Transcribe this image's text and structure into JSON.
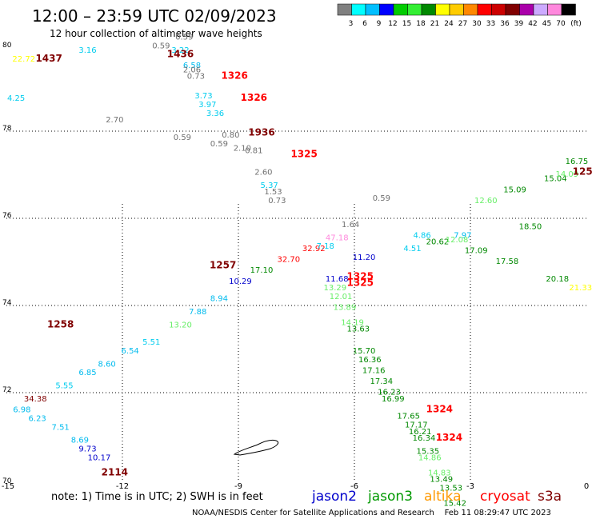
{
  "title": "12:00 – 23:59 UTC 02/09/2023",
  "subtitle": "12 hour collection of altimeter wave heights",
  "colorbar": {
    "colors": [
      "#808080",
      "#00ffff",
      "#00bfff",
      "#0000ff",
      "#00cc00",
      "#33ee33",
      "#008800",
      "#ffff00",
      "#ffcc00",
      "#ff8800",
      "#ff0000",
      "#cc0000",
      "#800000",
      "#aa00aa",
      "#ccaaff",
      "#ff88dd",
      "#000000"
    ],
    "labels": [
      "3",
      "6",
      "9",
      "12",
      "15",
      "18",
      "21",
      "24",
      "27",
      "30",
      "33",
      "36",
      "39",
      "42",
      "45",
      "70",
      "(ft)"
    ]
  },
  "note": "note: 1) Time is in UTC; 2) SWH is in feet",
  "missions": [
    {
      "name": "jason2",
      "color": "#0000cc"
    },
    {
      "name": "jason3",
      "color": "#009900"
    },
    {
      "name": "altika",
      "color": "#ff9900"
    },
    {
      "name": "cryosat",
      "color": "#ff0000"
    },
    {
      "name": "s3a",
      "color": "#800000"
    }
  ],
  "footer": "NOAA/NESDIS Center for Satellite Applications and Research    Feb 11 08:29:47 UTC 2023",
  "chart_data": {
    "type": "scatter",
    "xlim": [
      -15,
      0
    ],
    "ylim": [
      70,
      80
    ],
    "xticks": [
      "-15",
      "-12",
      "-9",
      "-6",
      "-3",
      "0"
    ],
    "yticks": [
      "80",
      "78",
      "76",
      "74",
      "72",
      "70"
    ],
    "grid": true,
    "time_labels": [
      {
        "x": -13.9,
        "y": 79.6,
        "text": "1437",
        "color": "#800000"
      },
      {
        "x": -10.5,
        "y": 79.7,
        "text": "1436",
        "color": "#800000"
      },
      {
        "x": -9.1,
        "y": 79.2,
        "text": "1326",
        "color": "#ff0000"
      },
      {
        "x": -8.6,
        "y": 78.7,
        "text": "1326",
        "color": "#ff0000"
      },
      {
        "x": -8.4,
        "y": 77.9,
        "text": "1936",
        "color": "#800000"
      },
      {
        "x": -7.3,
        "y": 77.4,
        "text": "1325",
        "color": "#ff0000"
      },
      {
        "x": -9.4,
        "y": 74.85,
        "text": "1257",
        "color": "#800000"
      },
      {
        "x": -13.6,
        "y": 73.5,
        "text": "1258",
        "color": "#800000"
      },
      {
        "x": -12.2,
        "y": 70.1,
        "text": "2114",
        "color": "#800000"
      },
      {
        "x": -5.85,
        "y": 74.6,
        "text": "1325",
        "color": "#ff0000"
      },
      {
        "x": -5.85,
        "y": 74.45,
        "text": "1325",
        "color": "#ff0000"
      },
      {
        "x": -3.8,
        "y": 71.55,
        "text": "1324",
        "color": "#ff0000"
      },
      {
        "x": -3.55,
        "y": 70.9,
        "text": "1324",
        "color": "#ff0000"
      },
      {
        "x": -0.1,
        "y": 77.0,
        "text": "125",
        "color": "#800000"
      }
    ],
    "points": [
      {
        "x": -14.55,
        "y": 79.6,
        "swh": "22.72",
        "color": "#ffff00"
      },
      {
        "x": -12.9,
        "y": 79.8,
        "swh": "3.16",
        "color": "#00ccee"
      },
      {
        "x": -14.75,
        "y": 78.7,
        "swh": "4.25",
        "color": "#00ccee"
      },
      {
        "x": -12.2,
        "y": 78.2,
        "swh": "2.70",
        "color": "#707070"
      },
      {
        "x": -11.0,
        "y": 79.9,
        "swh": "0.59",
        "color": "#707070"
      },
      {
        "x": -10.4,
        "y": 80.1,
        "swh": "0.59",
        "color": "#707070"
      },
      {
        "x": -10.5,
        "y": 79.8,
        "swh": "3.22",
        "color": "#00ccee"
      },
      {
        "x": -10.2,
        "y": 79.45,
        "swh": "6.58",
        "color": "#00bbee"
      },
      {
        "x": -10.2,
        "y": 79.35,
        "swh": "2.06",
        "color": "#707070"
      },
      {
        "x": -10.1,
        "y": 79.2,
        "swh": "0.73",
        "color": "#707070"
      },
      {
        "x": -9.9,
        "y": 78.75,
        "swh": "3.73",
        "color": "#00ccee"
      },
      {
        "x": -9.8,
        "y": 78.55,
        "swh": "3.97",
        "color": "#00ccee"
      },
      {
        "x": -9.6,
        "y": 78.35,
        "swh": "3.36",
        "color": "#00ccee"
      },
      {
        "x": -10.45,
        "y": 77.8,
        "swh": "0.59",
        "color": "#707070"
      },
      {
        "x": -9.2,
        "y": 77.85,
        "swh": "0.80",
        "color": "#707070"
      },
      {
        "x": -9.5,
        "y": 77.65,
        "swh": "0.59",
        "color": "#707070"
      },
      {
        "x": -8.9,
        "y": 77.55,
        "swh": "2.10",
        "color": "#707070"
      },
      {
        "x": -8.6,
        "y": 77.5,
        "swh": "0.81",
        "color": "#707070"
      },
      {
        "x": -8.35,
        "y": 77.0,
        "swh": "2.60",
        "color": "#707070"
      },
      {
        "x": -8.2,
        "y": 76.7,
        "swh": "5.37",
        "color": "#00ccee"
      },
      {
        "x": -8.1,
        "y": 76.55,
        "swh": "1.53",
        "color": "#707070"
      },
      {
        "x": -8.0,
        "y": 76.35,
        "swh": "0.73",
        "color": "#707070"
      },
      {
        "x": -5.3,
        "y": 76.4,
        "swh": "0.59",
        "color": "#707070"
      },
      {
        "x": -6.1,
        "y": 75.8,
        "swh": "1.64",
        "color": "#707070"
      },
      {
        "x": -5.75,
        "y": 75.05,
        "swh": "11.20",
        "color": "#0000cc"
      },
      {
        "x": -4.5,
        "y": 75.25,
        "swh": "4.51",
        "color": "#00ccee"
      },
      {
        "x": -4.25,
        "y": 75.55,
        "swh": "4.86",
        "color": "#00ccee"
      },
      {
        "x": -3.85,
        "y": 75.4,
        "swh": "20.62",
        "color": "#008800"
      },
      {
        "x": -3.2,
        "y": 75.55,
        "swh": "7.97",
        "color": "#00bbee"
      },
      {
        "x": -3.35,
        "y": 75.45,
        "swh": "12.08",
        "color": "#66ee66"
      },
      {
        "x": -2.6,
        "y": 76.35,
        "swh": "12.60",
        "color": "#66ee66"
      },
      {
        "x": -2.85,
        "y": 75.2,
        "swh": "17.09",
        "color": "#008800"
      },
      {
        "x": -1.85,
        "y": 76.6,
        "swh": "15.09",
        "color": "#008800"
      },
      {
        "x": -2.05,
        "y": 74.95,
        "swh": "17.58",
        "color": "#008800"
      },
      {
        "x": -1.45,
        "y": 75.75,
        "swh": "18.50",
        "color": "#008800"
      },
      {
        "x": -0.8,
        "y": 76.85,
        "swh": "15.04",
        "color": "#008800"
      },
      {
        "x": -0.75,
        "y": 74.55,
        "swh": "20.18",
        "color": "#008800"
      },
      {
        "x": -0.25,
        "y": 77.25,
        "swh": "16.75",
        "color": "#008800"
      },
      {
        "x": -0.5,
        "y": 76.95,
        "swh": "14.09",
        "color": "#66ee66"
      },
      {
        "x": -0.15,
        "y": 74.35,
        "swh": "21.33",
        "color": "#ffff00"
      },
      {
        "x": -7.05,
        "y": 75.25,
        "swh": "32.92",
        "color": "#ff0000"
      },
      {
        "x": -6.45,
        "y": 75.5,
        "swh": "47.18",
        "color": "#ff88dd"
      },
      {
        "x": -6.75,
        "y": 75.3,
        "swh": "7.18",
        "color": "#00ccee"
      },
      {
        "x": -6.45,
        "y": 74.55,
        "swh": "11.68",
        "color": "#0000cc"
      },
      {
        "x": -6.5,
        "y": 74.35,
        "swh": "13.29",
        "color": "#66ee66"
      },
      {
        "x": -6.35,
        "y": 74.15,
        "swh": "12.01",
        "color": "#66ee66"
      },
      {
        "x": -6.25,
        "y": 73.9,
        "swh": "13.89",
        "color": "#66ee66"
      },
      {
        "x": -7.7,
        "y": 75.0,
        "swh": "32.70",
        "color": "#ff0000"
      },
      {
        "x": -8.4,
        "y": 74.75,
        "swh": "17.10",
        "color": "#008800"
      },
      {
        "x": -8.95,
        "y": 74.5,
        "swh": "10.29",
        "color": "#0000cc"
      },
      {
        "x": -9.5,
        "y": 74.1,
        "swh": "8.94",
        "color": "#00bbee"
      },
      {
        "x": -10.05,
        "y": 73.8,
        "swh": "7.88",
        "color": "#00bbee"
      },
      {
        "x": -10.5,
        "y": 73.5,
        "swh": "13.20",
        "color": "#66ee66"
      },
      {
        "x": -11.25,
        "y": 73.1,
        "swh": "5.51",
        "color": "#00ccee"
      },
      {
        "x": -11.8,
        "y": 72.9,
        "swh": "6.54",
        "color": "#00bbee"
      },
      {
        "x": -12.4,
        "y": 72.6,
        "swh": "8.60",
        "color": "#00bbee"
      },
      {
        "x": -12.9,
        "y": 72.4,
        "swh": "6.85",
        "color": "#00bbee"
      },
      {
        "x": -13.5,
        "y": 72.1,
        "swh": "5.55",
        "color": "#00ccee"
      },
      {
        "x": -14.25,
        "y": 71.8,
        "swh": "34.38",
        "color": "#800000"
      },
      {
        "x": -6.05,
        "y": 73.55,
        "swh": "14.19",
        "color": "#66ee66"
      },
      {
        "x": -5.9,
        "y": 73.4,
        "swh": "13.63",
        "color": "#008800"
      },
      {
        "x": -5.75,
        "y": 72.9,
        "swh": "15.70",
        "color": "#008800"
      },
      {
        "x": -5.6,
        "y": 72.7,
        "swh": "16.36",
        "color": "#008800"
      },
      {
        "x": -5.5,
        "y": 72.45,
        "swh": "17.16",
        "color": "#008800"
      },
      {
        "x": -5.3,
        "y": 72.2,
        "swh": "17.34",
        "color": "#008800"
      },
      {
        "x": -5.1,
        "y": 71.95,
        "swh": "16.23",
        "color": "#008800"
      },
      {
        "x": -5.0,
        "y": 71.8,
        "swh": "16.99",
        "color": "#008800"
      },
      {
        "x": -4.6,
        "y": 71.4,
        "swh": "17.65",
        "color": "#008800"
      },
      {
        "x": -4.4,
        "y": 71.2,
        "swh": "17.17",
        "color": "#008800"
      },
      {
        "x": -4.3,
        "y": 71.05,
        "swh": "16.21",
        "color": "#008800"
      },
      {
        "x": -4.2,
        "y": 70.9,
        "swh": "16.34",
        "color": "#008800"
      },
      {
        "x": -4.1,
        "y": 70.6,
        "swh": "15.35",
        "color": "#008800"
      },
      {
        "x": -4.05,
        "y": 70.45,
        "swh": "14.86",
        "color": "#66ee66"
      },
      {
        "x": -3.8,
        "y": 70.1,
        "swh": "14.83",
        "color": "#66ee66"
      },
      {
        "x": -3.75,
        "y": 69.95,
        "swh": "13.49",
        "color": "#008800"
      },
      {
        "x": -3.5,
        "y": 69.75,
        "swh": "13.53",
        "color": "#008800"
      },
      {
        "x": -3.4,
        "y": 69.4,
        "swh": "15.42",
        "color": "#008800"
      },
      {
        "x": -14.6,
        "y": 71.55,
        "swh": "6.98",
        "color": "#00bbee"
      },
      {
        "x": -14.2,
        "y": 71.35,
        "swh": "6.23",
        "color": "#00bbee"
      },
      {
        "x": -13.6,
        "y": 71.15,
        "swh": "7.51",
        "color": "#00bbee"
      },
      {
        "x": -13.1,
        "y": 70.85,
        "swh": "8.69",
        "color": "#00bbee"
      },
      {
        "x": -12.9,
        "y": 70.65,
        "swh": "9.73",
        "color": "#0000cc"
      },
      {
        "x": -12.6,
        "y": 70.45,
        "swh": "10.17",
        "color": "#0000cc"
      }
    ]
  }
}
